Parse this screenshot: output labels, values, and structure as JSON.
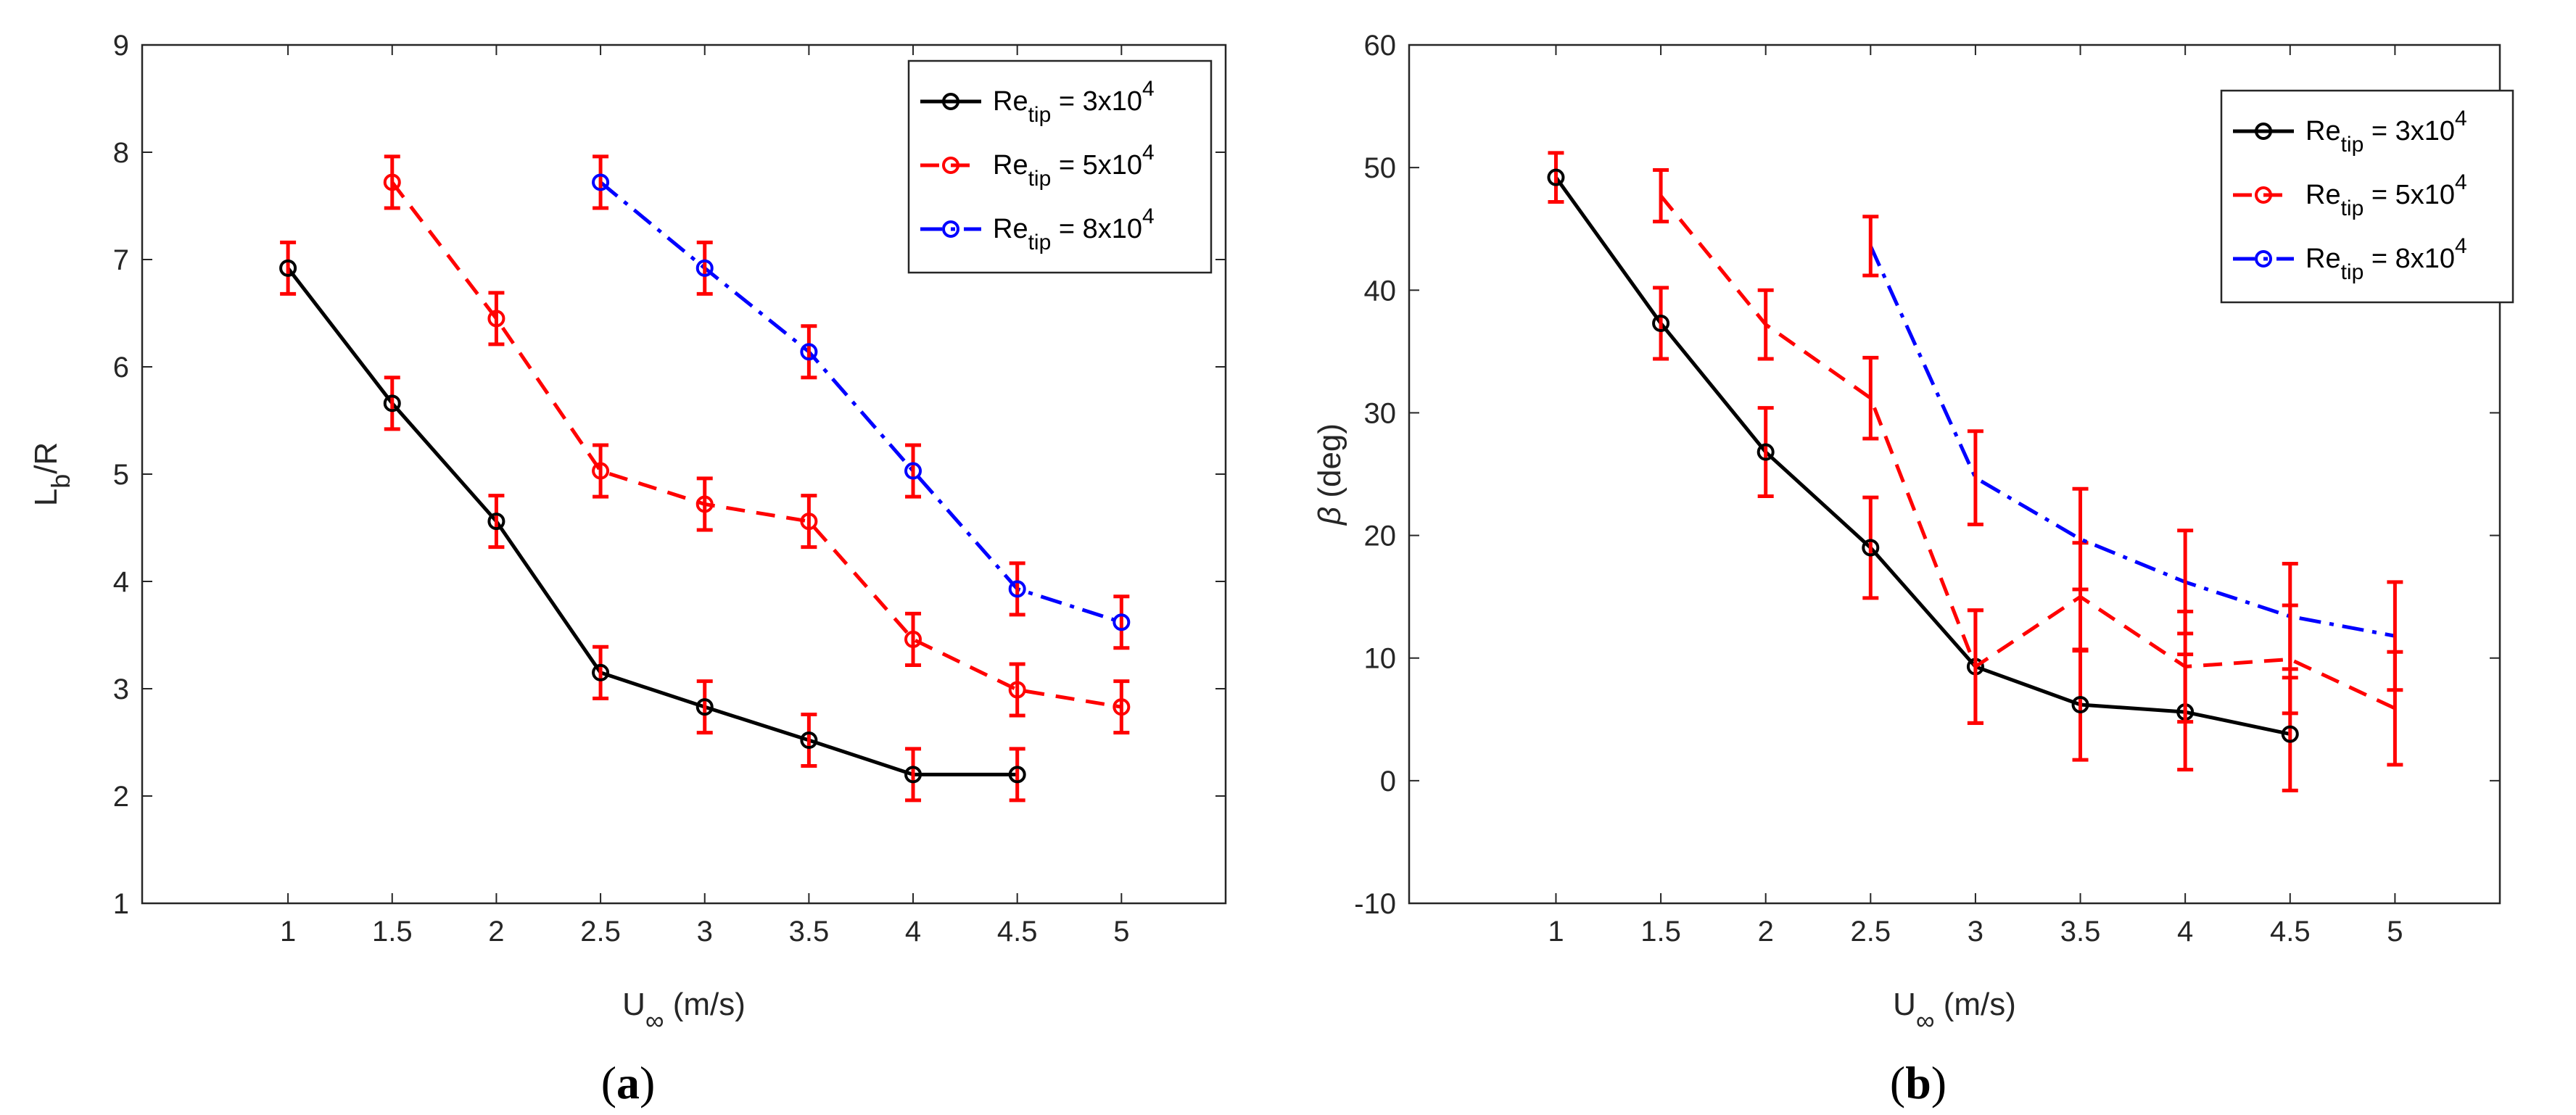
{
  "colors": {
    "black": "#000000",
    "red": "#ff0000",
    "blue": "#0000ff",
    "axis": "#262626"
  },
  "chart_data": [
    {
      "type": "line",
      "panel_label": "a",
      "xlabel": {
        "main": "U",
        "sub": "∞",
        "unit": " (m/s)"
      },
      "ylabel": {
        "main": "L",
        "sub": "b",
        "tail": "/R"
      },
      "xlim": [
        0.3,
        5.5
      ],
      "ylim": [
        1,
        9
      ],
      "xticks": [
        1,
        1.5,
        2,
        2.5,
        3,
        3.5,
        4,
        4.5,
        5
      ],
      "xtick_labels": [
        "1",
        "1.5",
        "2",
        "2.5",
        "3",
        "3.5",
        "4",
        "4.5",
        "5"
      ],
      "yticks": [
        1,
        2,
        3,
        4,
        5,
        6,
        7,
        8,
        9
      ],
      "ytick_labels": [
        "1",
        "2",
        "3",
        "4",
        "5",
        "6",
        "7",
        "8",
        "9"
      ],
      "legend_position": "top-right",
      "series": [
        {
          "name": "Re_tip = 3x10^4",
          "legend": {
            "pre": "Re",
            "sub": "tip",
            "mid": " = 3x10",
            "sup": "4"
          },
          "color": "#000000",
          "linestyle": "solid",
          "marker": "circle",
          "x": [
            1,
            1.5,
            2,
            2.5,
            3,
            3.5,
            4,
            4.5
          ],
          "y": [
            6.92,
            5.66,
            4.56,
            3.15,
            2.83,
            2.52,
            2.2,
            2.2
          ],
          "err": [
            0.24,
            0.24,
            0.24,
            0.24,
            0.24,
            0.24,
            0.24,
            0.24
          ],
          "errcolor": "#ff0000"
        },
        {
          "name": "Re_tip = 5x10^4",
          "legend": {
            "pre": "Re",
            "sub": "tip",
            "mid": " = 5x10",
            "sup": "4"
          },
          "color": "#ff0000",
          "linestyle": "dashed",
          "marker": "circle",
          "x": [
            1.5,
            2,
            2.5,
            3,
            3.5,
            4,
            4.5,
            5
          ],
          "y": [
            7.72,
            6.45,
            5.03,
            4.72,
            4.56,
            3.46,
            2.99,
            2.83
          ],
          "err": [
            0.24,
            0.24,
            0.24,
            0.24,
            0.24,
            0.24,
            0.24,
            0.24
          ],
          "errcolor": "#ff0000"
        },
        {
          "name": "Re_tip = 8x10^4",
          "legend": {
            "pre": "Re",
            "sub": "tip",
            "mid": " = 8x10",
            "sup": "4"
          },
          "color": "#0000ff",
          "linestyle": "dashdot",
          "marker": "circle",
          "x": [
            2.5,
            3,
            3.5,
            4,
            4.5,
            5
          ],
          "y": [
            7.72,
            6.92,
            6.14,
            5.03,
            3.93,
            3.62
          ],
          "err": [
            0.24,
            0.24,
            0.24,
            0.24,
            0.24,
            0.24
          ],
          "errcolor": "#ff0000"
        }
      ]
    },
    {
      "type": "line",
      "panel_label": "b",
      "xlabel": {
        "main": "U",
        "sub": "∞",
        "unit": " (m/s)"
      },
      "ylabel": {
        "main": "β",
        "sub": "",
        "tail": " (deg)"
      },
      "xlim": [
        0.3,
        5.5
      ],
      "ylim": [
        -10,
        60
      ],
      "xticks": [
        1,
        1.5,
        2,
        2.5,
        3,
        3.5,
        4,
        4.5,
        5
      ],
      "xtick_labels": [
        "1",
        "1.5",
        "2",
        "2.5",
        "3",
        "3.5",
        "4",
        "4.5",
        "5"
      ],
      "yticks": [
        -10,
        0,
        10,
        20,
        30,
        40,
        50,
        60
      ],
      "ytick_labels": [
        "-10",
        "0",
        "10",
        "20",
        "30",
        "40",
        "50",
        "60"
      ],
      "legend_position": "top-right",
      "series": [
        {
          "name": "Re_tip = 3x10^4",
          "legend": {
            "pre": "Re",
            "sub": "tip",
            "mid": " = 3x10",
            "sup": "4"
          },
          "color": "#000000",
          "linestyle": "solid",
          "marker": "circle",
          "x": [
            1,
            1.5,
            2,
            2.5,
            3,
            3.5,
            4,
            4.5
          ],
          "y": [
            49.2,
            37.3,
            26.8,
            19.0,
            9.3,
            6.2,
            5.6,
            3.8
          ],
          "err": [
            2.0,
            2.9,
            3.6,
            4.1,
            4.6,
            4.5,
            4.7,
            4.6
          ],
          "errcolor": "#ff0000"
        },
        {
          "name": "Re_tip = 5x10^4",
          "legend": {
            "pre": "Re",
            "sub": "tip",
            "mid": " = 5x10",
            "sup": "4"
          },
          "color": "#ff0000",
          "linestyle": "dashed",
          "marker": "none",
          "x": [
            1.5,
            2,
            2.5,
            3,
            3.5,
            4,
            4.5,
            5
          ],
          "y": [
            47.7,
            37.2,
            31.2,
            9.3,
            15.0,
            9.3,
            9.9,
            5.9
          ],
          "err": [
            2.1,
            2.8,
            3.3,
            4.6,
            4.4,
            4.5,
            4.4,
            4.6
          ],
          "errcolor": "#ff0000"
        },
        {
          "name": "Re_tip = 8x10^4",
          "legend": {
            "pre": "Re",
            "sub": "tip",
            "mid": " = 8x10",
            "sup": "4"
          },
          "color": "#0000ff",
          "linestyle": "dashdot",
          "marker": "none",
          "x": [
            2.5,
            3,
            3.5,
            4,
            4.5,
            5
          ],
          "y": [
            43.6,
            24.7,
            19.7,
            16.2,
            13.4,
            11.8
          ],
          "err": [
            2.4,
            3.8,
            4.1,
            4.2,
            4.3,
            4.4
          ],
          "errcolor": "#ff0000"
        }
      ]
    }
  ]
}
